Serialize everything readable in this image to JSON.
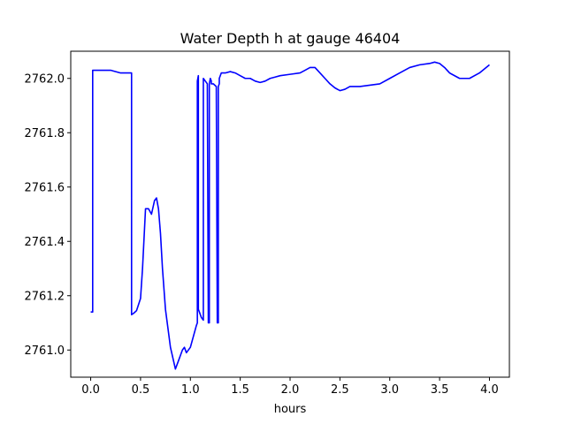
{
  "chart_data": {
    "type": "line",
    "title": "Water Depth h at gauge 46404",
    "xlabel": "hours",
    "ylabel": "",
    "xlim": [
      -0.2,
      4.2
    ],
    "ylim": [
      2760.9,
      2762.1
    ],
    "xticks": [
      0.0,
      0.5,
      1.0,
      1.5,
      2.0,
      2.5,
      3.0,
      3.5,
      4.0
    ],
    "xtick_labels": [
      "0.0",
      "0.5",
      "1.0",
      "1.5",
      "2.0",
      "2.5",
      "3.0",
      "3.5",
      "4.0"
    ],
    "yticks": [
      2761.0,
      2761.2,
      2761.4,
      2761.6,
      2761.8,
      2762.0
    ],
    "ytick_labels": [
      "2761.0",
      "2761.2",
      "2761.4",
      "2761.6",
      "2761.8",
      "2762.0"
    ],
    "grid": false,
    "series": [
      {
        "color": "#0000ff",
        "x": [
          0.0,
          0.02,
          0.02,
          0.05,
          0.1,
          0.2,
          0.3,
          0.4,
          0.41,
          0.41,
          0.43,
          0.46,
          0.5,
          0.52,
          0.55,
          0.58,
          0.61,
          0.64,
          0.66,
          0.68,
          0.7,
          0.72,
          0.75,
          0.8,
          0.85,
          0.88,
          0.92,
          0.94,
          0.96,
          1.0,
          1.06,
          1.07,
          1.07,
          1.08,
          1.08,
          1.09,
          1.11,
          1.13,
          1.13,
          1.15,
          1.17,
          1.18,
          1.19,
          1.19,
          1.2,
          1.21,
          1.21,
          1.23,
          1.26,
          1.27,
          1.27,
          1.28,
          1.28,
          1.29,
          1.29,
          1.31,
          1.35,
          1.4,
          1.45,
          1.5,
          1.55,
          1.6,
          1.65,
          1.7,
          1.75,
          1.8,
          1.85,
          1.9,
          2.0,
          2.1,
          2.15,
          2.2,
          2.25,
          2.3,
          2.35,
          2.4,
          2.45,
          2.5,
          2.55,
          2.6,
          2.7,
          2.8,
          2.9,
          3.0,
          3.1,
          3.2,
          3.3,
          3.4,
          3.45,
          3.5,
          3.55,
          3.6,
          3.7,
          3.8,
          3.9,
          4.0
        ],
        "y": [
          2761.14,
          2761.14,
          2762.03,
          2762.03,
          2762.03,
          2762.03,
          2762.02,
          2762.02,
          2762.02,
          2761.13,
          2761.135,
          2761.145,
          2761.19,
          2761.3,
          2761.52,
          2761.52,
          2761.5,
          2761.55,
          2761.56,
          2761.52,
          2761.43,
          2761.3,
          2761.15,
          2761.01,
          2760.93,
          2760.96,
          2761.0,
          2761.01,
          2760.99,
          2761.01,
          2761.09,
          2761.1,
          2761.99,
          2762.01,
          2761.15,
          2761.14,
          2761.12,
          2761.11,
          2762.0,
          2761.99,
          2761.98,
          2761.1,
          2761.1,
          2761.98,
          2762.0,
          2761.99,
          2761.98,
          2761.98,
          2761.97,
          2761.1,
          2761.1,
          2761.1,
          2761.97,
          2761.98,
          2762.0,
          2762.02,
          2762.02,
          2762.025,
          2762.02,
          2762.01,
          2762.0,
          2762.0,
          2761.99,
          2761.985,
          2761.99,
          2762.0,
          2762.005,
          2762.01,
          2762.015,
          2762.02,
          2762.03,
          2762.04,
          2762.04,
          2762.02,
          2762.0,
          2761.98,
          2761.965,
          2761.955,
          2761.96,
          2761.97,
          2761.97,
          2761.975,
          2761.98,
          2762.0,
          2762.02,
          2762.04,
          2762.05,
          2762.055,
          2762.06,
          2762.055,
          2762.04,
          2762.02,
          2762.0,
          2762.0,
          2762.02,
          2762.05
        ]
      }
    ]
  }
}
